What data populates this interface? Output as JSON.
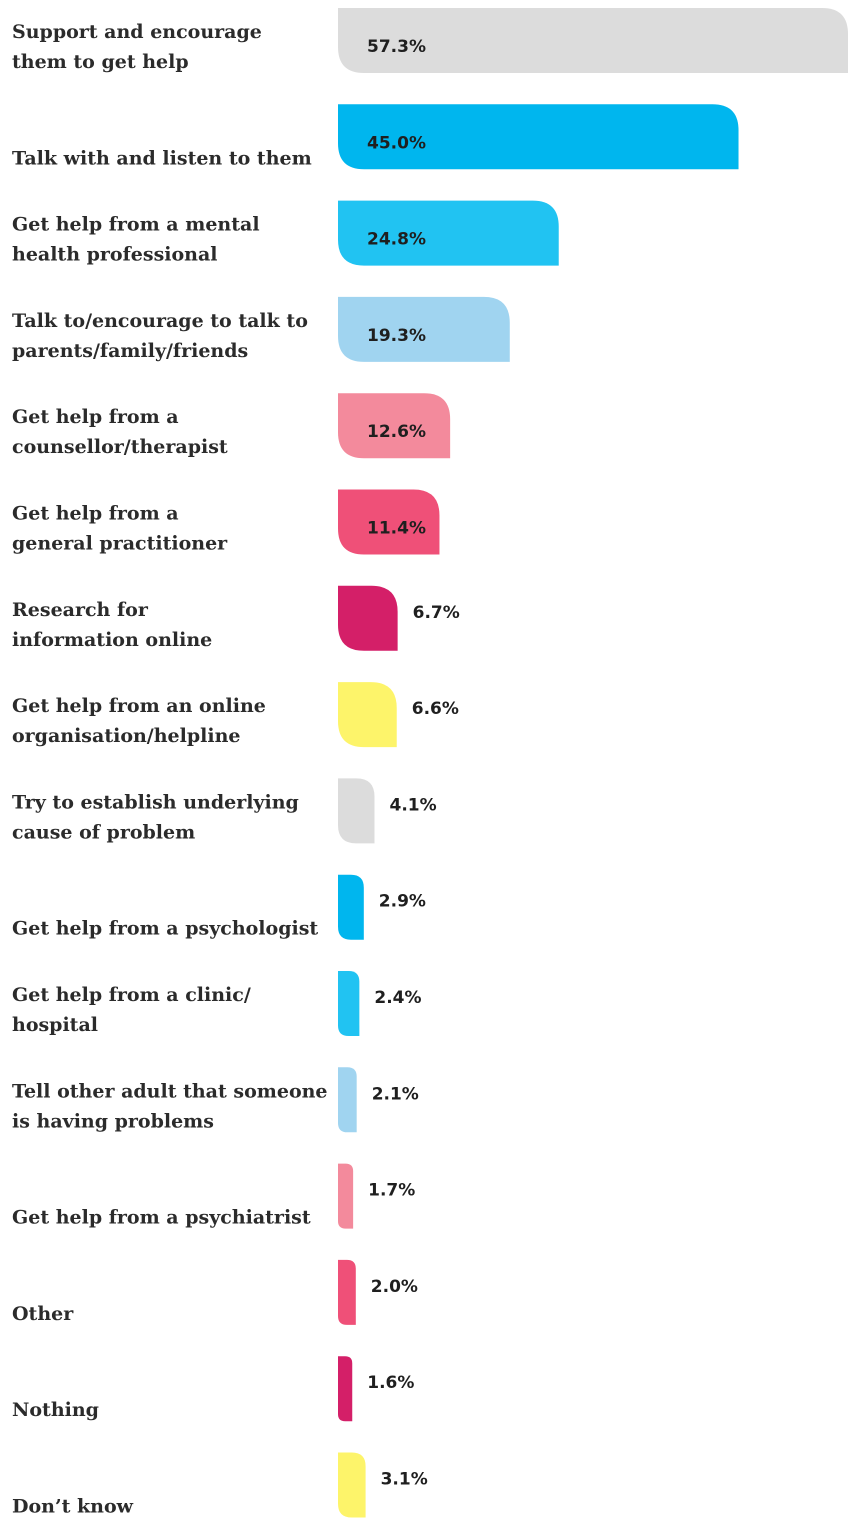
{
  "chart_data": {
    "type": "bar",
    "orientation": "horizontal",
    "unit": "%",
    "categories": [
      [
        "Support and encourage",
        "them to get help"
      ],
      [
        "Talk with and listen to them"
      ],
      [
        "Get help from a mental",
        "health professional"
      ],
      [
        "Talk to/encourage to talk to",
        "parents/family/friends"
      ],
      [
        "Get help from a",
        "counsellor/therapist"
      ],
      [
        "Get help from a",
        "general practitioner"
      ],
      [
        "Research for",
        "information online"
      ],
      [
        "Get help from an online",
        "organisation/helpline"
      ],
      [
        "Try to establish underlying",
        "cause of problem"
      ],
      [
        "Get help from a psychologist"
      ],
      [
        "Get help from a clinic/",
        "hospital"
      ],
      [
        "Tell other adult that someone",
        "is having problems"
      ],
      [
        "Get help from a psychiatrist"
      ],
      [
        "Other"
      ],
      [
        "Nothing"
      ],
      [
        "Don’t know"
      ]
    ],
    "values": [
      57.3,
      45.0,
      24.8,
      19.3,
      12.6,
      11.4,
      6.7,
      6.6,
      4.1,
      2.9,
      2.4,
      2.1,
      1.7,
      2.0,
      1.6,
      3.1
    ],
    "value_labels": [
      "57.3%",
      "45.0%",
      "24.8%",
      "19.3%",
      "12.6%",
      "11.4%",
      "6.7%",
      "6.6%",
      "4.1%",
      "2.9%",
      "2.4%",
      "2.1%",
      "1.7%",
      "2.0%",
      "1.6%",
      "3.1%"
    ],
    "colors": [
      "#dcdcdc",
      "#00b6ee",
      "#21c3f2",
      "#a0d4f0",
      "#f38a9c",
      "#ef5078",
      "#d41f68",
      "#fdf46a",
      "#dcdcdc",
      "#00b6ee",
      "#21c3f2",
      "#a0d4f0",
      "#f38a9c",
      "#ef5078",
      "#d41f68",
      "#fdf46a"
    ],
    "xlim": [
      0,
      57.3
    ],
    "grid": false,
    "legend": "none"
  }
}
